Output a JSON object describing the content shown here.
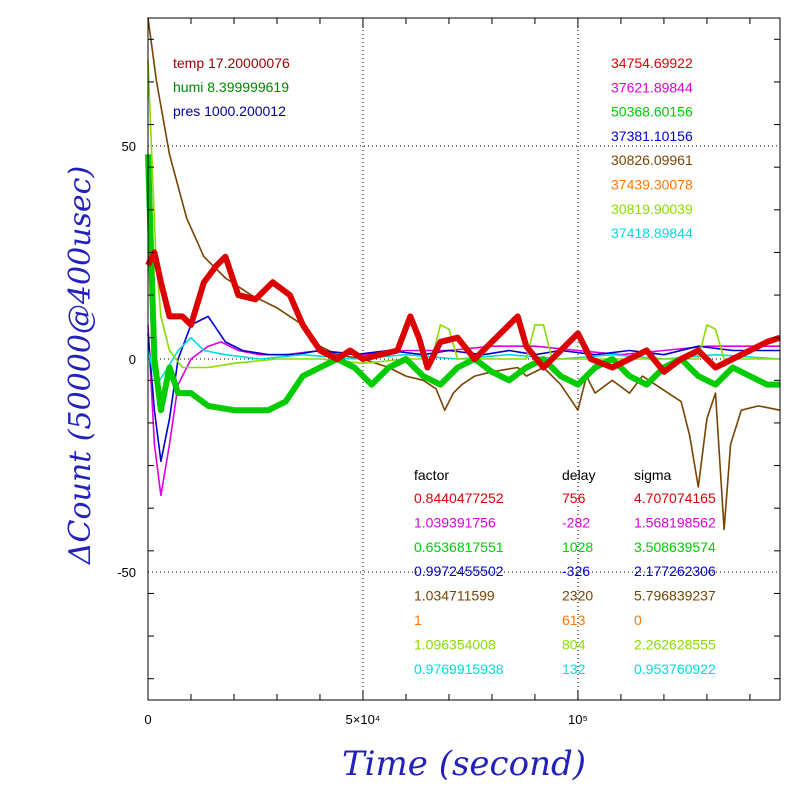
{
  "chart_data": {
    "type": "line",
    "xlabel": "Time (second)",
    "ylabel": "ΔCount (50000@400usec)",
    "xlim": [
      0,
      147000
    ],
    "ylim": [
      -80,
      80
    ],
    "grid": "dotted, major ticks",
    "x_ticks": [
      {
        "v": 0,
        "label": "0"
      },
      {
        "v": 50000,
        "label": "5×10⁴"
      },
      {
        "v": 100000,
        "label": "10⁵"
      }
    ],
    "y_ticks": [
      {
        "v": 50,
        "label": "50"
      },
      {
        "v": 0,
        "label": "0"
      },
      {
        "v": -50,
        "label": "-50"
      }
    ],
    "env": [
      {
        "label": "temp 17.20000076",
        "color": "#990000"
      },
      {
        "label": "humi 8.399999619",
        "color": "#008800"
      },
      {
        "label": "pres 1000.200012",
        "color": "#000099"
      }
    ],
    "means": [
      {
        "label": "34754.69922",
        "color": "#dd0000"
      },
      {
        "label": "37621.89844",
        "color": "#dd00dd"
      },
      {
        "label": "50368.60156",
        "color": "#00cc00"
      },
      {
        "label": "37381.10156",
        "color": "#0000cc"
      },
      {
        "label": "30826.09961",
        "color": "#774400"
      },
      {
        "label": "37439.30078",
        "color": "#ff7700"
      },
      {
        "label": "30819.90039",
        "color": "#88dd00"
      },
      {
        "label": "37418.89844",
        "color": "#00dddd"
      }
    ],
    "table_header": {
      "factor": "factor",
      "delay": "delay",
      "sigma": "sigma"
    },
    "table": [
      {
        "factor": "0.8440477252",
        "delay": "756",
        "sigma": "4.707074165",
        "color": "#dd0000"
      },
      {
        "factor": "1.039391756",
        "delay": "-282",
        "sigma": "1.568198562",
        "color": "#dd00dd"
      },
      {
        "factor": "0.6536817551",
        "delay": "1028",
        "sigma": "3.508639574",
        "color": "#00cc00"
      },
      {
        "factor": "0.9972455502",
        "delay": "-326",
        "sigma": "2.177262306",
        "color": "#0000cc"
      },
      {
        "factor": "1.034711599",
        "delay": "2320",
        "sigma": "5.796839237",
        "color": "#774400"
      },
      {
        "factor": "1",
        "delay": "613",
        "sigma": "0",
        "color": "#ff7700"
      },
      {
        "factor": "1.096354008",
        "delay": "804",
        "sigma": "2.262628555",
        "color": "#88dd00"
      },
      {
        "factor": "0.9769915938",
        "delay": "132",
        "sigma": "0.953760922",
        "color": "#00dddd"
      }
    ],
    "series": [
      {
        "color": "#774400",
        "points": [
          [
            0,
            80
          ],
          [
            2000,
            65
          ],
          [
            5000,
            48
          ],
          [
            9000,
            33
          ],
          [
            13000,
            24
          ],
          [
            18000,
            19
          ],
          [
            24000,
            15
          ],
          [
            30000,
            12
          ],
          [
            36000,
            8
          ],
          [
            40000,
            3
          ],
          [
            44000,
            1
          ],
          [
            50000,
            0
          ],
          [
            56000,
            -2
          ],
          [
            60000,
            -4
          ],
          [
            64000,
            -5
          ],
          [
            67000,
            -7
          ],
          [
            69000,
            -12
          ],
          [
            71000,
            -8
          ],
          [
            73000,
            -6
          ],
          [
            76000,
            -4
          ],
          [
            80000,
            -3
          ],
          [
            86000,
            -2
          ],
          [
            88000,
            -4
          ],
          [
            92000,
            -2
          ],
          [
            96000,
            -6
          ],
          [
            100000,
            -12
          ],
          [
            102000,
            -4
          ],
          [
            104000,
            -8
          ],
          [
            108000,
            -5
          ],
          [
            112000,
            -8
          ],
          [
            115000,
            -4
          ],
          [
            118000,
            -6
          ],
          [
            121000,
            -8
          ],
          [
            124000,
            -10
          ],
          [
            126000,
            -18
          ],
          [
            128000,
            -30
          ],
          [
            130000,
            -14
          ],
          [
            132000,
            -8
          ],
          [
            134000,
            -40
          ],
          [
            135500,
            -20
          ],
          [
            138000,
            -12
          ],
          [
            142000,
            -11
          ],
          [
            147000,
            -12
          ]
        ]
      },
      {
        "color": "#dd00dd",
        "points": [
          [
            0,
            8
          ],
          [
            1500,
            -20
          ],
          [
            3000,
            -32
          ],
          [
            5000,
            -20
          ],
          [
            7000,
            -6
          ],
          [
            10000,
            0
          ],
          [
            14000,
            3
          ],
          [
            17000,
            4
          ],
          [
            21000,
            2
          ],
          [
            26000,
            1
          ],
          [
            32000,
            1
          ],
          [
            40000,
            2
          ],
          [
            50000,
            1
          ],
          [
            60000,
            2
          ],
          [
            70000,
            2
          ],
          [
            80000,
            3
          ],
          [
            90000,
            3
          ],
          [
            100000,
            2
          ],
          [
            110000,
            1
          ],
          [
            120000,
            2
          ],
          [
            130000,
            3
          ],
          [
            140000,
            3
          ],
          [
            147000,
            3
          ]
        ]
      },
      {
        "color": "#0000cc",
        "points": [
          [
            0,
            6
          ],
          [
            1500,
            -12
          ],
          [
            3000,
            -24
          ],
          [
            5000,
            -14
          ],
          [
            7000,
            0
          ],
          [
            10000,
            8
          ],
          [
            14000,
            10
          ],
          [
            18000,
            4
          ],
          [
            22000,
            2
          ],
          [
            28000,
            1
          ],
          [
            34000,
            1
          ],
          [
            40000,
            2
          ],
          [
            48000,
            1
          ],
          [
            56000,
            2
          ],
          [
            64000,
            1
          ],
          [
            70000,
            2
          ],
          [
            78000,
            1
          ],
          [
            84000,
            2
          ],
          [
            90000,
            1
          ],
          [
            96000,
            2
          ],
          [
            104000,
            1
          ],
          [
            112000,
            2
          ],
          [
            120000,
            1
          ],
          [
            128000,
            3
          ],
          [
            136000,
            2
          ],
          [
            142000,
            2
          ],
          [
            147000,
            2
          ]
        ]
      },
      {
        "color": "#00dddd",
        "points": [
          [
            0,
            2
          ],
          [
            2000,
            -6
          ],
          [
            4000,
            -3
          ],
          [
            7000,
            2
          ],
          [
            10000,
            5
          ],
          [
            13000,
            2
          ],
          [
            18000,
            1
          ],
          [
            26000,
            0
          ],
          [
            36000,
            1
          ],
          [
            48000,
            0
          ],
          [
            60000,
            1
          ],
          [
            72000,
            0
          ],
          [
            84000,
            1
          ],
          [
            96000,
            0
          ],
          [
            108000,
            1
          ],
          [
            120000,
            0
          ],
          [
            132000,
            1
          ],
          [
            147000,
            0
          ]
        ]
      },
      {
        "color": "#88dd00",
        "points": [
          [
            0,
            70
          ],
          [
            800,
            50
          ],
          [
            1800,
            25
          ],
          [
            3000,
            10
          ],
          [
            5000,
            2
          ],
          [
            8000,
            -2
          ],
          [
            14000,
            -2
          ],
          [
            20000,
            -1
          ],
          [
            30000,
            0
          ],
          [
            40000,
            0
          ],
          [
            50000,
            -1
          ],
          [
            60000,
            0
          ],
          [
            66000,
            0
          ],
          [
            68000,
            8
          ],
          [
            70000,
            7
          ],
          [
            72000,
            0
          ],
          [
            80000,
            0
          ],
          [
            88000,
            0
          ],
          [
            90000,
            8
          ],
          [
            92000,
            8
          ],
          [
            94000,
            0
          ],
          [
            104000,
            0
          ],
          [
            110000,
            0
          ],
          [
            128000,
            0
          ],
          [
            130000,
            8
          ],
          [
            132000,
            7
          ],
          [
            134000,
            0
          ],
          [
            147000,
            0
          ]
        ]
      },
      {
        "color": "#00cc00",
        "points": [
          [
            0,
            48
          ],
          [
            1500,
            0
          ],
          [
            3000,
            -12
          ],
          [
            5000,
            -2
          ],
          [
            7000,
            -8
          ],
          [
            10000,
            -8
          ],
          [
            14000,
            -11
          ],
          [
            20000,
            -12
          ],
          [
            28000,
            -12
          ],
          [
            32000,
            -10
          ],
          [
            36000,
            -4
          ],
          [
            40000,
            -2
          ],
          [
            44000,
            0
          ],
          [
            48000,
            -2
          ],
          [
            52000,
            -6
          ],
          [
            56000,
            -2
          ],
          [
            60000,
            0
          ],
          [
            64000,
            -4
          ],
          [
            68000,
            -6
          ],
          [
            72000,
            -2
          ],
          [
            76000,
            0
          ],
          [
            80000,
            -3
          ],
          [
            84000,
            -5
          ],
          [
            88000,
            -2
          ],
          [
            92000,
            0
          ],
          [
            96000,
            -4
          ],
          [
            100000,
            -6
          ],
          [
            104000,
            -2
          ],
          [
            108000,
            0
          ],
          [
            112000,
            -4
          ],
          [
            116000,
            -6
          ],
          [
            120000,
            -2
          ],
          [
            124000,
            0
          ],
          [
            128000,
            -4
          ],
          [
            132000,
            -6
          ],
          [
            136000,
            -2
          ],
          [
            140000,
            -4
          ],
          [
            144000,
            -6
          ],
          [
            147000,
            -6
          ]
        ]
      },
      {
        "color": "#dd0000",
        "points": [
          [
            0,
            22
          ],
          [
            1500,
            25
          ],
          [
            3000,
            18
          ],
          [
            5000,
            10
          ],
          [
            8000,
            10
          ],
          [
            10000,
            8
          ],
          [
            13000,
            18
          ],
          [
            16000,
            22
          ],
          [
            18000,
            24
          ],
          [
            21000,
            15
          ],
          [
            25000,
            14
          ],
          [
            29000,
            18
          ],
          [
            33000,
            15
          ],
          [
            36000,
            8
          ],
          [
            40000,
            2
          ],
          [
            44000,
            0
          ],
          [
            47000,
            2
          ],
          [
            50000,
            0
          ],
          [
            54000,
            1
          ],
          [
            58000,
            2
          ],
          [
            61000,
            10
          ],
          [
            63000,
            5
          ],
          [
            65000,
            -2
          ],
          [
            68000,
            4
          ],
          [
            72000,
            5
          ],
          [
            76000,
            0
          ],
          [
            80000,
            4
          ],
          [
            84000,
            8
          ],
          [
            86000,
            10
          ],
          [
            88000,
            3
          ],
          [
            92000,
            -2
          ],
          [
            96000,
            2
          ],
          [
            100000,
            6
          ],
          [
            103000,
            0
          ],
          [
            108000,
            -2
          ],
          [
            112000,
            0
          ],
          [
            116000,
            2
          ],
          [
            120000,
            -3
          ],
          [
            124000,
            0
          ],
          [
            128000,
            2
          ],
          [
            132000,
            -2
          ],
          [
            136000,
            0
          ],
          [
            140000,
            2
          ],
          [
            144000,
            4
          ],
          [
            147000,
            5
          ]
        ]
      }
    ]
  }
}
